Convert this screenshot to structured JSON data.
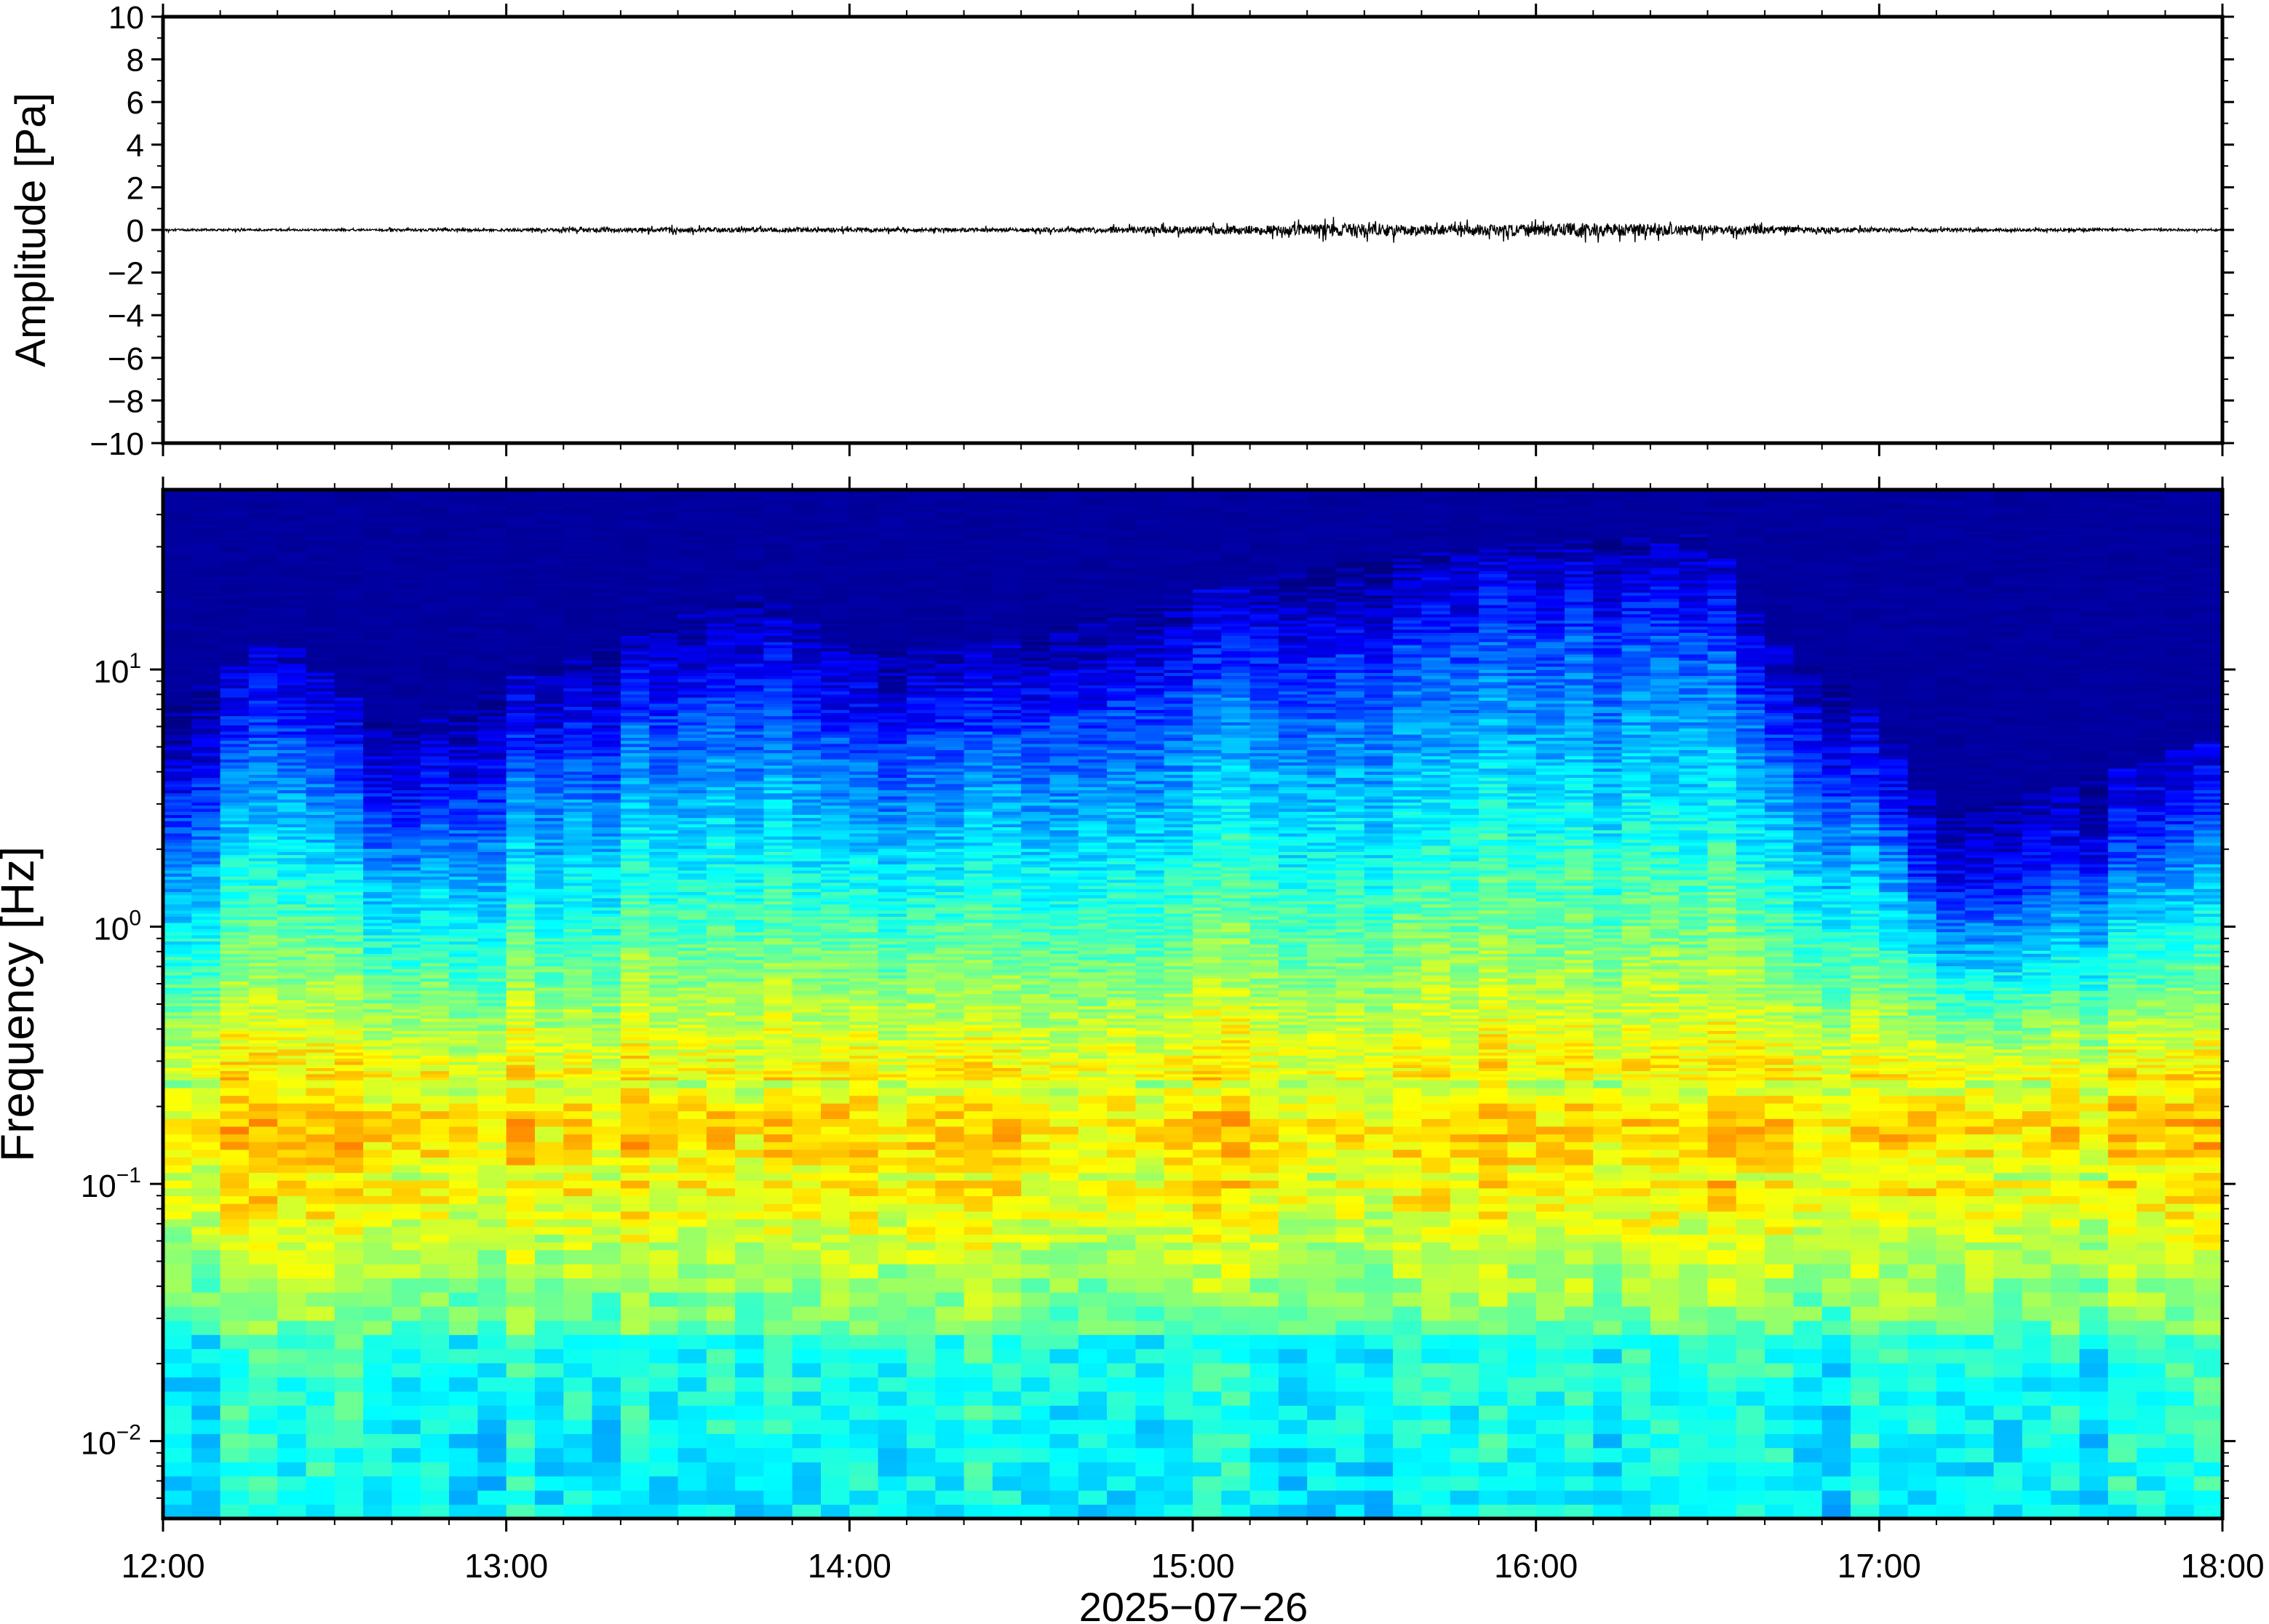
{
  "chart_data": [
    {
      "type": "line",
      "title": "",
      "ylabel": "Amplitude [Pa]",
      "ylim": [
        -10,
        10
      ],
      "yticks": [
        10,
        8,
        6,
        4,
        2,
        0,
        -2,
        -4,
        -6,
        -8,
        -10
      ],
      "ytick_labels": [
        "10",
        "8",
        "6",
        "4",
        "2",
        "0",
        "−2",
        "−4",
        "−6",
        "−8",
        "−10"
      ],
      "x_range": [
        "12:00",
        "18:00"
      ],
      "series": [
        {
          "x": [
            "12:00",
            "12:30",
            "13:00",
            "13:30",
            "14:00",
            "14:30",
            "15:00",
            "15:15",
            "15:30",
            "15:45",
            "16:00",
            "16:15",
            "16:30",
            "17:00",
            "17:30",
            "18:00"
          ],
          "y_envelope": [
            0.1,
            0.1,
            0.15,
            0.25,
            0.2,
            0.2,
            0.4,
            0.5,
            0.7,
            0.5,
            0.75,
            0.7,
            0.5,
            0.2,
            0.15,
            0.1
          ],
          "color": "#000000"
        }
      ]
    },
    {
      "type": "heatmap",
      "title": "",
      "ylabel": "Frequency [Hz]",
      "xlabel": "2025−07−26",
      "x_range": [
        "12:00",
        "18:00"
      ],
      "xticks": [
        "12:00",
        "13:00",
        "14:00",
        "15:00",
        "16:00",
        "17:00",
        "18:00"
      ],
      "yscale": "log",
      "ylim": [
        0.005,
        50
      ],
      "yticks": [
        {
          "base": "10",
          "exp": "1",
          "value": 10
        },
        {
          "base": "10",
          "exp": "0",
          "value": 1
        },
        {
          "base": "10",
          "exp": "−1",
          "value": 0.1
        },
        {
          "base": "10",
          "exp": "−2",
          "value": 0.01
        }
      ],
      "colormap": "jet",
      "peak_band_hz": [
        0.1,
        0.25
      ],
      "upper_cutoff_hz": {
        "times": [
          "12:00",
          "12:20",
          "12:40",
          "13:00",
          "13:30",
          "13:45",
          "14:00",
          "14:30",
          "15:00",
          "15:30",
          "16:00",
          "16:30",
          "16:40",
          "17:00",
          "17:10",
          "17:30",
          "18:00"
        ],
        "values": [
          3,
          6,
          2.5,
          4,
          7,
          9,
          5,
          6,
          9,
          12,
          14,
          15,
          6,
          3,
          1.2,
          1.5,
          2.5
        ]
      }
    }
  ]
}
